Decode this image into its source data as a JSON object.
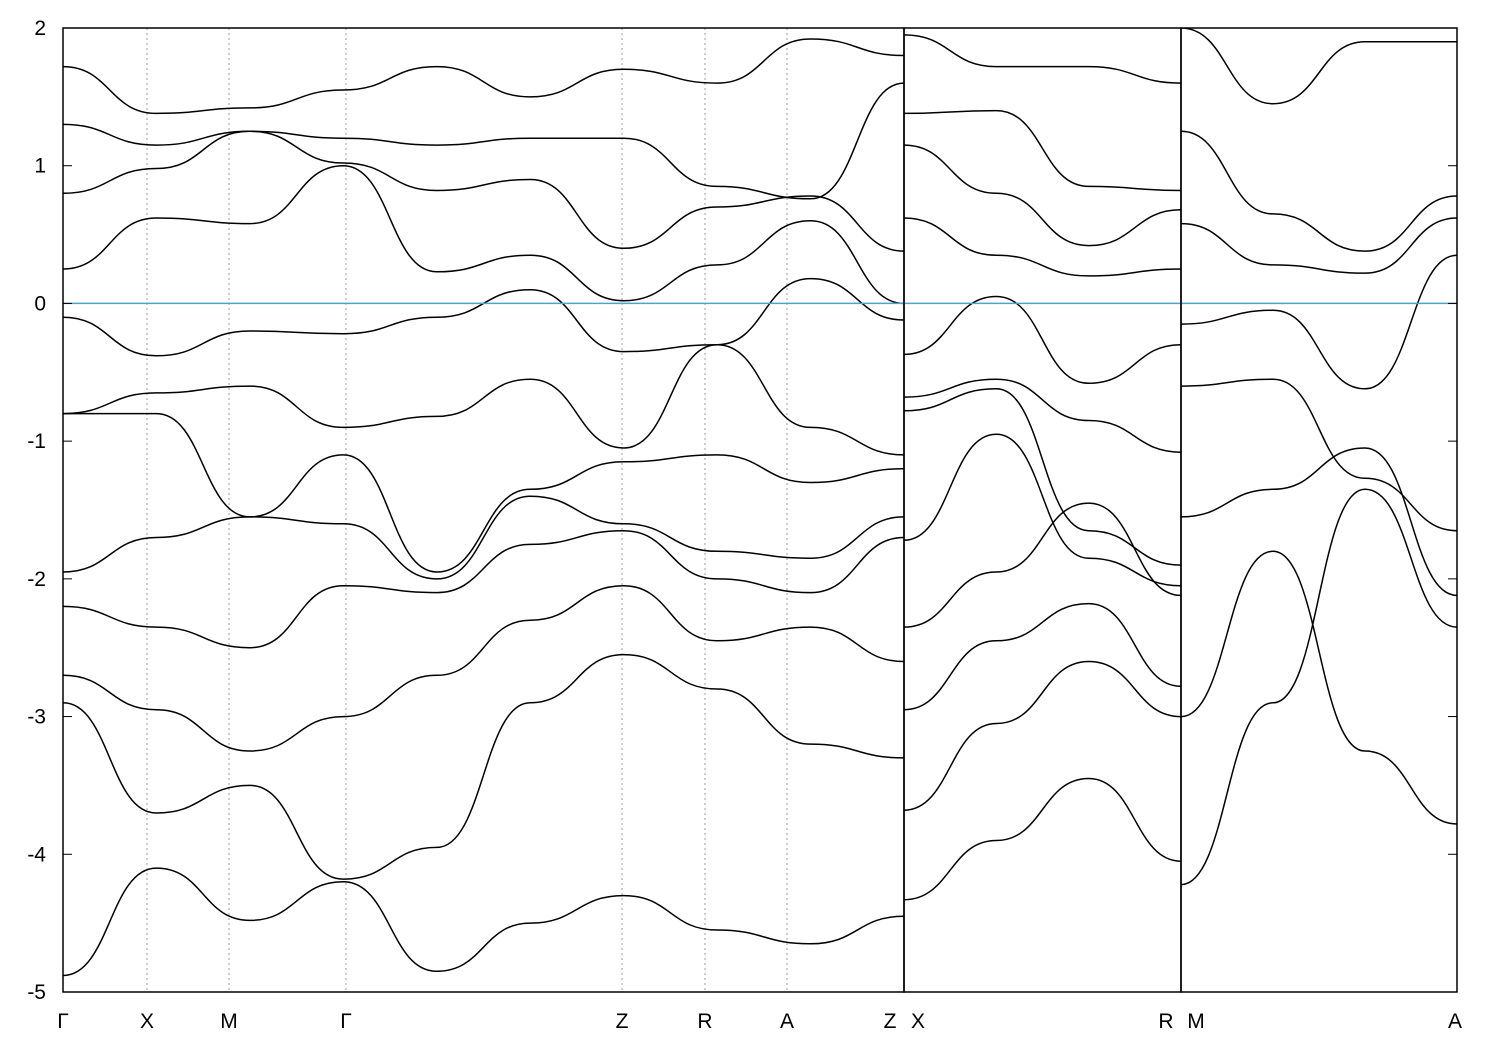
{
  "chart_data": {
    "type": "line",
    "title": "",
    "xlabel": "",
    "ylabel": "",
    "ylim": [
      -5,
      2
    ],
    "yticks": [
      2,
      1,
      0,
      -1,
      -2,
      -3,
      -4,
      -5
    ],
    "grid": false,
    "legend": "none",
    "colors": {
      "bands": "#000000",
      "fermi_level": "#4fa3c6",
      "kpoint_marker": "#888888"
    },
    "k_labels": [
      "Γ",
      "X",
      "M",
      "Γ",
      "Z",
      "R",
      "A",
      "Z",
      "X",
      "R",
      "M",
      "A"
    ],
    "fermi_level": 0,
    "segments": [
      {
        "name": "Γ-X-M-Γ-Z-R-A-Z",
        "kpoints": [
          "Γ",
          "X",
          "M",
          "Γ",
          "Z",
          "R",
          "A",
          "Z"
        ]
      },
      {
        "name": "X-R",
        "kpoints": [
          "X",
          "R"
        ]
      },
      {
        "name": "M-A",
        "kpoints": [
          "M",
          "A"
        ]
      }
    ],
    "series": [
      {
        "segment": 0,
        "values": [
          -4.88,
          -4.1,
          -4.48,
          -4.2,
          -4.85,
          -4.5,
          -4.3,
          -4.55,
          -4.65,
          -4.45
        ]
      },
      {
        "segment": 0,
        "values": [
          -2.9,
          -3.7,
          -3.5,
          -4.18,
          -3.95,
          -2.9,
          -2.55,
          -2.8,
          -3.2,
          -3.3
        ]
      },
      {
        "segment": 0,
        "values": [
          -2.7,
          -2.95,
          -3.25,
          -3.0,
          -2.7,
          -2.3,
          -2.05,
          -2.45,
          -2.35,
          -2.6
        ]
      },
      {
        "segment": 0,
        "values": [
          -2.2,
          -2.35,
          -2.5,
          -2.05,
          -2.1,
          -1.75,
          -1.65,
          -2.0,
          -2.1,
          -1.7
        ]
      },
      {
        "segment": 0,
        "values": [
          -1.95,
          -1.7,
          -1.55,
          -1.6,
          -2.0,
          -1.4,
          -1.6,
          -1.8,
          -1.85,
          -1.55
        ]
      },
      {
        "segment": 0,
        "values": [
          -0.8,
          -0.8,
          -1.55,
          -1.1,
          -1.95,
          -1.35,
          -1.15,
          -1.1,
          -1.3,
          -1.2
        ]
      },
      {
        "segment": 0,
        "values": [
          -0.8,
          -0.65,
          -0.6,
          -0.9,
          -0.82,
          -0.55,
          -1.05,
          -0.3,
          -0.9,
          -1.1
        ]
      },
      {
        "segment": 0,
        "values": [
          -0.1,
          -0.38,
          -0.2,
          -0.22,
          -0.1,
          0.1,
          -0.35,
          -0.3,
          0.18,
          -0.12
        ]
      },
      {
        "segment": 0,
        "values": [
          0.25,
          0.62,
          0.58,
          1.0,
          0.23,
          0.35,
          0.02,
          0.28,
          0.6,
          0.0
        ]
      },
      {
        "segment": 0,
        "values": [
          0.8,
          0.98,
          1.25,
          1.02,
          0.82,
          0.9,
          0.4,
          0.7,
          0.78,
          0.38
        ]
      },
      {
        "segment": 0,
        "values": [
          1.3,
          1.15,
          1.25,
          1.2,
          1.15,
          1.2,
          1.2,
          0.85,
          0.76,
          1.6
        ]
      },
      {
        "segment": 0,
        "values": [
          1.72,
          1.38,
          1.42,
          1.55,
          1.72,
          1.5,
          1.7,
          1.6,
          1.92,
          1.8
        ]
      },
      {
        "segment": 1,
        "values": [
          -4.33,
          -3.9,
          -3.45,
          -4.05
        ]
      },
      {
        "segment": 1,
        "values": [
          -3.68,
          -3.05,
          -2.6,
          -3.0
        ]
      },
      {
        "segment": 1,
        "values": [
          -2.95,
          -2.45,
          -2.18,
          -2.78
        ]
      },
      {
        "segment": 1,
        "values": [
          -2.35,
          -1.95,
          -1.45,
          -2.12
        ]
      },
      {
        "segment": 1,
        "values": [
          -1.72,
          -0.95,
          -1.85,
          -2.05
        ]
      },
      {
        "segment": 1,
        "values": [
          -0.78,
          -0.62,
          -1.65,
          -1.9
        ]
      },
      {
        "segment": 1,
        "values": [
          -0.68,
          -0.55,
          -0.85,
          -1.08
        ]
      },
      {
        "segment": 1,
        "values": [
          -0.37,
          0.05,
          -0.58,
          -0.3
        ]
      },
      {
        "segment": 1,
        "values": [
          0.62,
          0.35,
          0.2,
          0.25
        ]
      },
      {
        "segment": 1,
        "values": [
          1.15,
          0.8,
          0.42,
          0.68
        ]
      },
      {
        "segment": 1,
        "values": [
          1.38,
          1.4,
          0.85,
          0.82
        ]
      },
      {
        "segment": 1,
        "values": [
          1.95,
          1.72,
          1.72,
          1.6
        ]
      },
      {
        "segment": 2,
        "values": [
          -4.22,
          -2.9,
          -1.35,
          -2.35
        ]
      },
      {
        "segment": 2,
        "values": [
          -3.0,
          -1.8,
          -3.25,
          -3.78
        ]
      },
      {
        "segment": 2,
        "values": [
          -1.55,
          -1.35,
          -1.05,
          -2.12
        ]
      },
      {
        "segment": 2,
        "values": [
          -0.6,
          -0.55,
          -1.27,
          -1.65
        ]
      },
      {
        "segment": 2,
        "values": [
          -0.15,
          -0.05,
          -0.62,
          0.35
        ]
      },
      {
        "segment": 2,
        "values": [
          0.58,
          0.28,
          0.22,
          0.62
        ]
      },
      {
        "segment": 2,
        "values": [
          1.25,
          0.65,
          0.38,
          0.78
        ]
      },
      {
        "segment": 2,
        "values": [
          2.0,
          1.45,
          1.9,
          1.9
        ]
      }
    ]
  }
}
